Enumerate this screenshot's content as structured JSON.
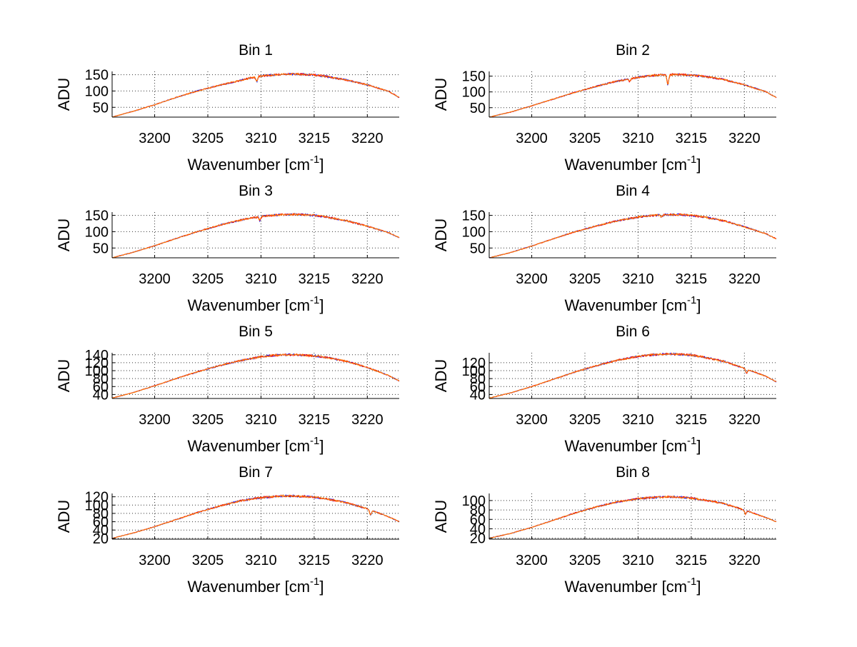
{
  "figure": {
    "background": "#ffffff",
    "series_colors": [
      "#0000ff",
      "#ff0000",
      "#ff8000"
    ],
    "xlabel_main": "Wavenumber [cm",
    "xlabel_sup": "-1",
    "xlabel_end": "]",
    "ylabel": "ADU"
  },
  "chart_data": [
    {
      "type": "line",
      "title": "Bin 1",
      "xlabel": "Wavenumber [cm-1]",
      "ylabel": "ADU",
      "xlim": [
        3196,
        3223
      ],
      "ylim": [
        20,
        160
      ],
      "grid": true,
      "xticks": [
        3200,
        3205,
        3210,
        3215,
        3220
      ],
      "yticks": [
        50,
        100,
        150
      ],
      "x": [
        3196,
        3198,
        3200,
        3202,
        3204,
        3206,
        3208,
        3209,
        3210,
        3211,
        3212,
        3213,
        3214,
        3215,
        3216,
        3218,
        3220,
        3222,
        3223
      ],
      "y": [
        20,
        38,
        58,
        80,
        100,
        117,
        132,
        140,
        146,
        149,
        151,
        152,
        151,
        149,
        145,
        134,
        119,
        99,
        80
      ],
      "features": [
        {
          "x": 3209.6,
          "depth": 14
        }
      ],
      "series": [
        {
          "name": "",
          "color": "#0000ff"
        },
        {
          "name": "",
          "color": "#ff0000"
        },
        {
          "name": "",
          "color": "#ff8000"
        }
      ]
    },
    {
      "type": "line",
      "title": "Bin 2",
      "xlabel": "Wavenumber [cm-1]",
      "ylabel": "ADU",
      "xlim": [
        3196,
        3223
      ],
      "ylim": [
        20,
        165
      ],
      "grid": true,
      "xticks": [
        3200,
        3205,
        3210,
        3215,
        3220
      ],
      "yticks": [
        50,
        100,
        150
      ],
      "x": [
        3196,
        3198,
        3200,
        3202,
        3204,
        3206,
        3208,
        3210,
        3211,
        3212,
        3213,
        3214,
        3215,
        3216,
        3218,
        3220,
        3222,
        3223
      ],
      "y": [
        20,
        36,
        56,
        77,
        98,
        117,
        134,
        146,
        151,
        154,
        155,
        155,
        153,
        150,
        140,
        122,
        101,
        82
      ],
      "features": [
        {
          "x": 3209.2,
          "depth": 8
        },
        {
          "x": 3212.8,
          "depth": 32
        }
      ],
      "series": [
        {
          "name": "",
          "color": "#0000ff"
        },
        {
          "name": "",
          "color": "#ff0000"
        },
        {
          "name": "",
          "color": "#ff8000"
        }
      ]
    },
    {
      "type": "line",
      "title": "Bin 3",
      "xlabel": "Wavenumber [cm-1]",
      "ylabel": "ADU",
      "xlim": [
        3196,
        3223
      ],
      "ylim": [
        20,
        160
      ],
      "grid": true,
      "xticks": [
        3200,
        3205,
        3210,
        3215,
        3220
      ],
      "yticks": [
        50,
        100,
        150
      ],
      "x": [
        3196,
        3198,
        3200,
        3202,
        3204,
        3206,
        3208,
        3210,
        3211,
        3212,
        3213,
        3214,
        3215,
        3216,
        3218,
        3220,
        3222,
        3223
      ],
      "y": [
        20,
        37,
        57,
        79,
        100,
        119,
        135,
        147,
        150,
        152,
        153,
        152,
        150,
        146,
        134,
        117,
        97,
        82
      ],
      "features": [
        {
          "x": 3209.9,
          "depth": 12
        }
      ],
      "series": [
        {
          "name": "",
          "color": "#0000ff"
        },
        {
          "name": "",
          "color": "#ff0000"
        },
        {
          "name": "",
          "color": "#ff8000"
        }
      ]
    },
    {
      "type": "line",
      "title": "Bin 4",
      "xlabel": "Wavenumber [cm-1]",
      "ylabel": "ADU",
      "xlim": [
        3196,
        3223
      ],
      "ylim": [
        20,
        160
      ],
      "grid": true,
      "xticks": [
        3200,
        3205,
        3210,
        3215,
        3220
      ],
      "yticks": [
        50,
        100,
        150
      ],
      "x": [
        3196,
        3198,
        3200,
        3202,
        3204,
        3206,
        3208,
        3210,
        3211,
        3212,
        3213,
        3214,
        3215,
        3216,
        3218,
        3220,
        3222,
        3223
      ],
      "y": [
        20,
        36,
        56,
        78,
        99,
        117,
        133,
        145,
        149,
        151,
        152,
        152,
        150,
        146,
        134,
        115,
        94,
        78
      ],
      "features": [
        {
          "x": 3212.2,
          "depth": 6
        }
      ],
      "series": [
        {
          "name": "",
          "color": "#0000ff"
        },
        {
          "name": "",
          "color": "#ff0000"
        },
        {
          "name": "",
          "color": "#ff8000"
        }
      ]
    },
    {
      "type": "line",
      "title": "Bin 5",
      "xlabel": "Wavenumber [cm-1]",
      "ylabel": "ADU",
      "xlim": [
        3196,
        3223
      ],
      "ylim": [
        30,
        145
      ],
      "grid": true,
      "xticks": [
        3200,
        3205,
        3210,
        3215,
        3220
      ],
      "yticks": [
        40,
        60,
        80,
        100,
        120,
        140
      ],
      "x": [
        3196,
        3198,
        3200,
        3202,
        3204,
        3206,
        3208,
        3210,
        3211,
        3212,
        3213,
        3214,
        3215,
        3216,
        3218,
        3220,
        3222,
        3223
      ],
      "y": [
        31,
        45,
        62,
        80,
        97,
        112,
        125,
        135,
        138,
        140,
        140,
        139,
        137,
        134,
        124,
        108,
        88,
        74
      ],
      "features": [],
      "series": [
        {
          "name": "",
          "color": "#0000ff"
        },
        {
          "name": "",
          "color": "#ff0000"
        },
        {
          "name": "",
          "color": "#ff8000"
        }
      ]
    },
    {
      "type": "line",
      "title": "Bin 6",
      "xlabel": "Wavenumber [cm-1]",
      "ylabel": "ADU",
      "xlim": [
        3196,
        3223
      ],
      "ylim": [
        30,
        145
      ],
      "grid": true,
      "xticks": [
        3200,
        3205,
        3210,
        3215,
        3220
      ],
      "yticks": [
        40,
        60,
        80,
        100,
        120
      ],
      "x": [
        3196,
        3198,
        3200,
        3202,
        3204,
        3206,
        3208,
        3210,
        3211,
        3212,
        3213,
        3214,
        3215,
        3216,
        3218,
        3220,
        3222,
        3223
      ],
      "y": [
        31,
        44,
        60,
        78,
        96,
        112,
        126,
        136,
        139,
        141,
        142,
        141,
        139,
        135,
        124,
        106,
        86,
        72
      ],
      "features": [
        {
          "x": 3220.2,
          "depth": 10
        }
      ],
      "series": [
        {
          "name": "",
          "color": "#0000ff"
        },
        {
          "name": "",
          "color": "#ff0000"
        },
        {
          "name": "",
          "color": "#ff8000"
        }
      ]
    },
    {
      "type": "line",
      "title": "Bin 7",
      "xlabel": "Wavenumber [cm-1]",
      "ylabel": "ADU",
      "xlim": [
        3196,
        3223
      ],
      "ylim": [
        18,
        128
      ],
      "grid": true,
      "xticks": [
        3200,
        3205,
        3210,
        3215,
        3220
      ],
      "yticks": [
        20,
        40,
        60,
        80,
        100,
        120
      ],
      "x": [
        3196,
        3198,
        3200,
        3202,
        3204,
        3206,
        3208,
        3210,
        3211,
        3212,
        3213,
        3214,
        3215,
        3216,
        3218,
        3220,
        3222,
        3223
      ],
      "y": [
        20,
        33,
        48,
        65,
        82,
        97,
        110,
        118,
        120,
        122,
        122,
        121,
        119,
        116,
        106,
        91,
        72,
        60
      ],
      "features": [
        {
          "x": 3220.3,
          "depth": 12
        }
      ],
      "series": [
        {
          "name": "",
          "color": "#0000ff"
        },
        {
          "name": "",
          "color": "#ff0000"
        },
        {
          "name": "",
          "color": "#ff8000"
        }
      ]
    },
    {
      "type": "line",
      "title": "Bin 8",
      "xlabel": "Wavenumber [cm-1]",
      "ylabel": "ADU",
      "xlim": [
        3196,
        3223
      ],
      "ylim": [
        18,
        115
      ],
      "grid": true,
      "xticks": [
        3200,
        3205,
        3210,
        3215,
        3220
      ],
      "yticks": [
        20,
        40,
        60,
        80,
        100
      ],
      "x": [
        3196,
        3198,
        3200,
        3202,
        3204,
        3206,
        3208,
        3210,
        3211,
        3212,
        3213,
        3214,
        3215,
        3216,
        3218,
        3220,
        3222,
        3223
      ],
      "y": [
        20,
        30,
        43,
        58,
        73,
        86,
        97,
        104,
        106,
        107,
        108,
        107,
        105,
        102,
        94,
        80,
        64,
        55
      ],
      "features": [
        {
          "x": 3220.1,
          "depth": 8
        }
      ],
      "series": [
        {
          "name": "",
          "color": "#0000ff"
        },
        {
          "name": "",
          "color": "#ff0000"
        },
        {
          "name": "",
          "color": "#ff8000"
        }
      ]
    }
  ]
}
